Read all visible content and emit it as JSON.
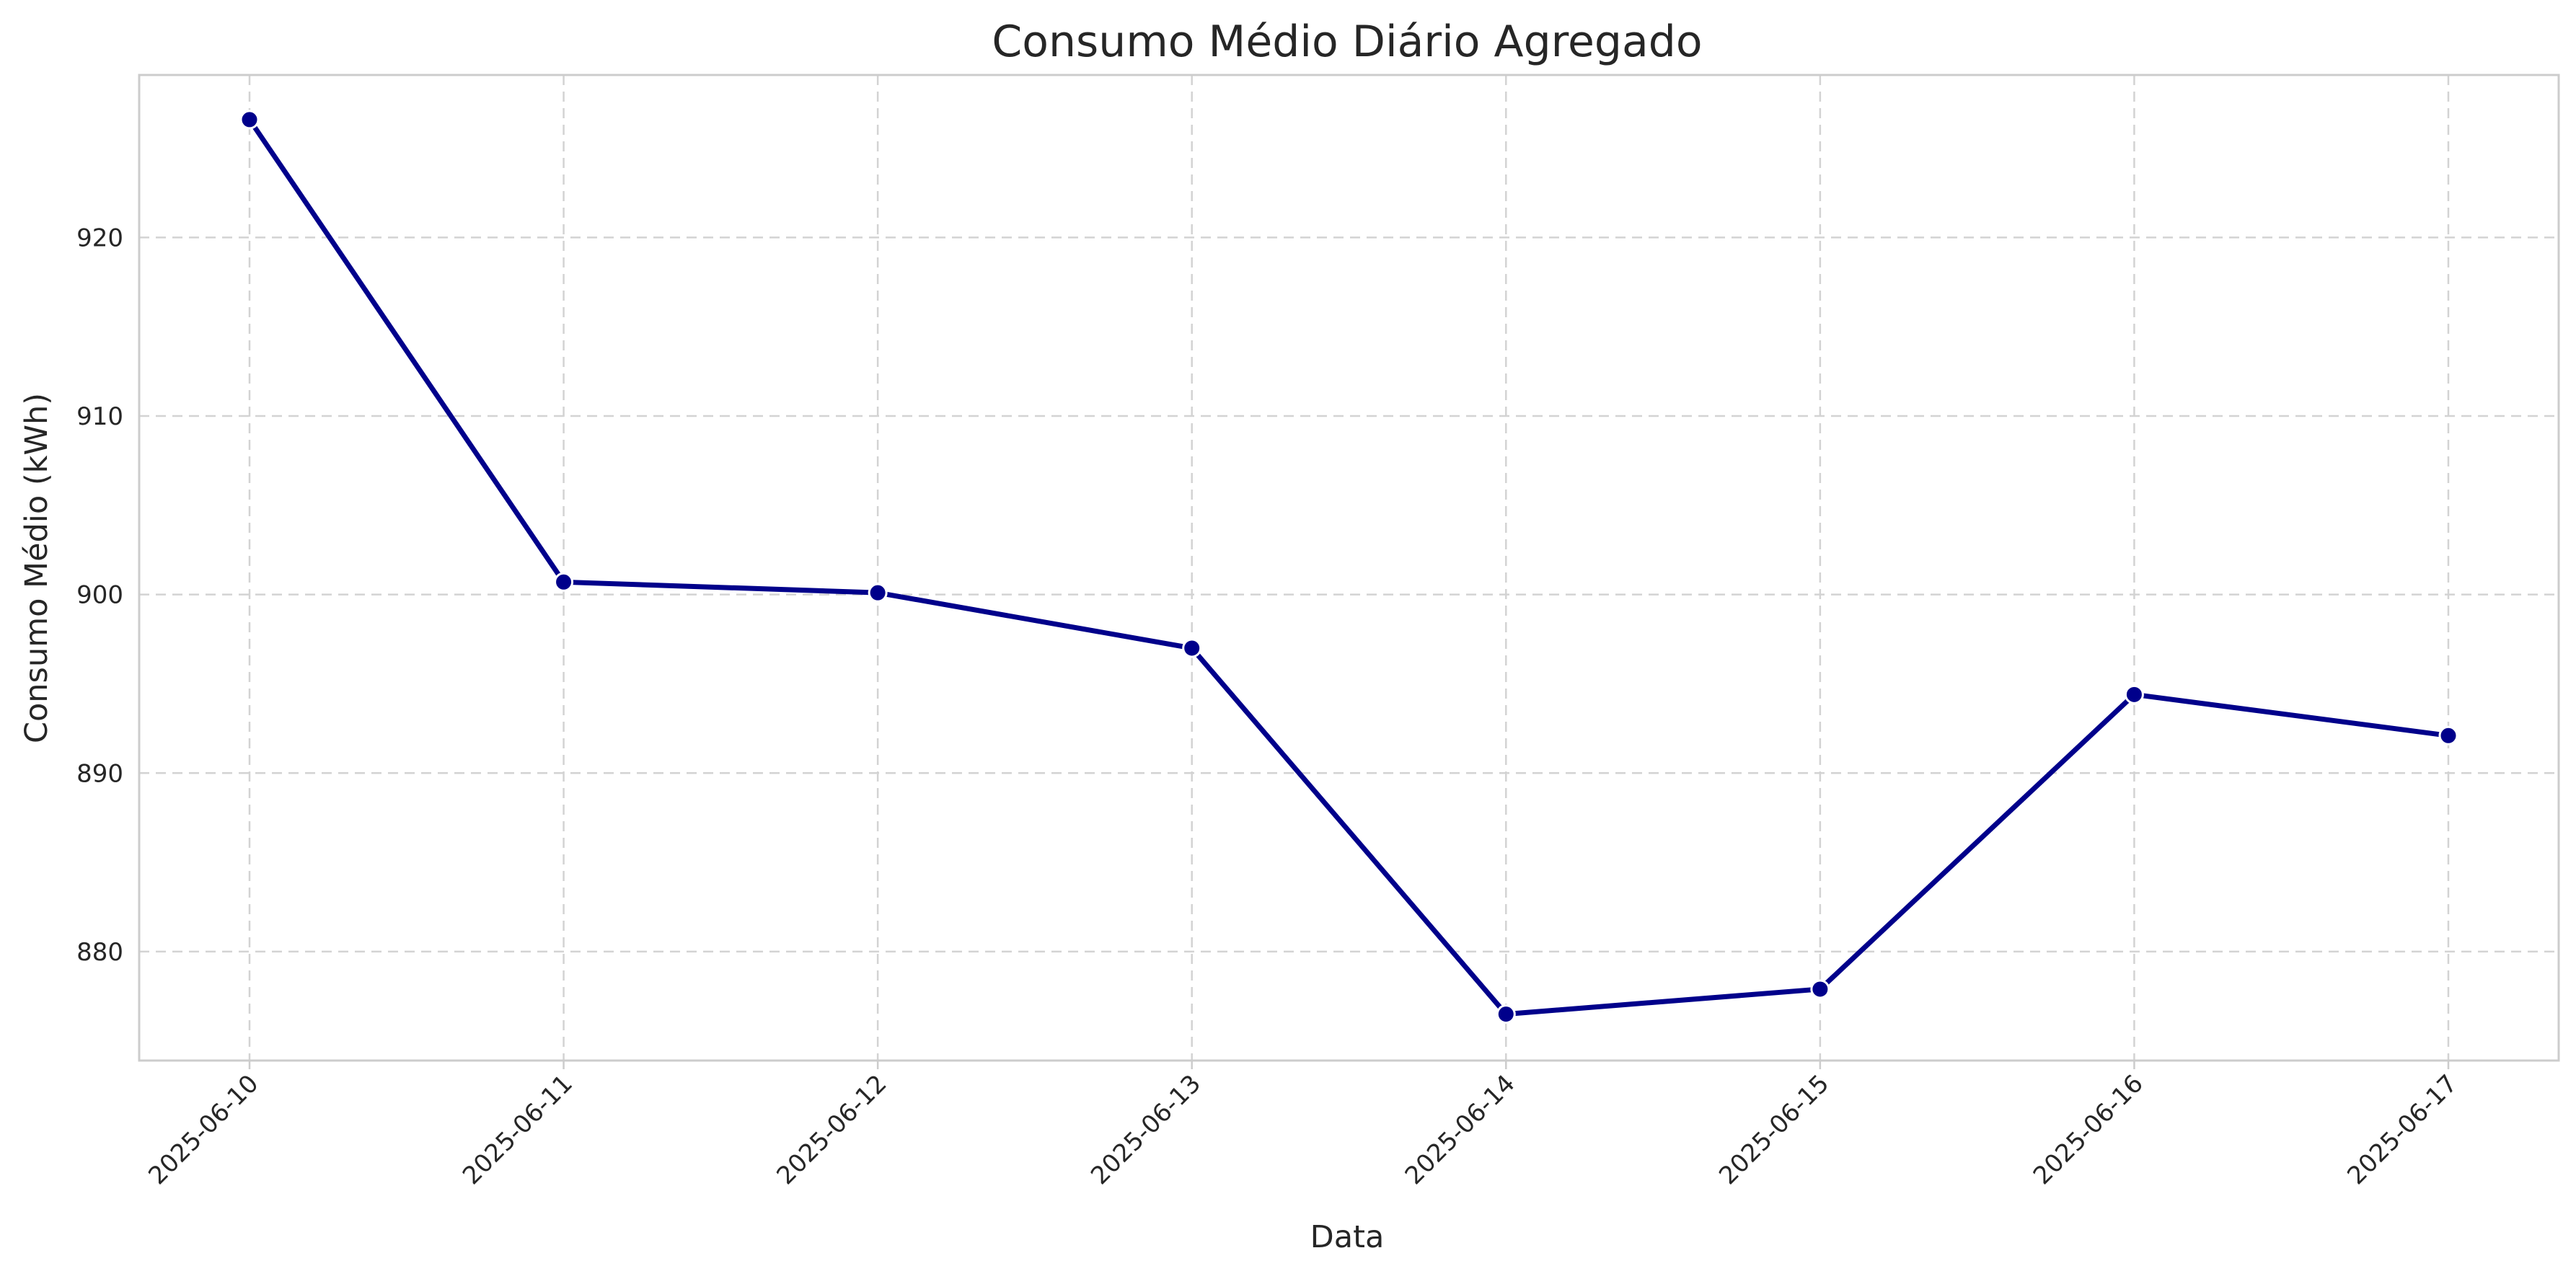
{
  "chart_data": {
    "type": "line",
    "title": "Consumo Médio Diário Agregado",
    "xlabel": "Data",
    "ylabel": "Consumo Médio  (kWh)",
    "x": [
      "2025-06-10",
      "2025-06-11",
      "2025-06-12",
      "2025-06-13",
      "2025-06-14",
      "2025-06-15",
      "2025-06-16",
      "2025-06-17"
    ],
    "series": [
      {
        "values": [
          926.6,
          900.7,
          900.1,
          897.0,
          876.5,
          877.9,
          894.4,
          892.1
        ],
        "color": "#00008b",
        "marker": "circle"
      }
    ],
    "y_ticks": [
      880,
      890,
      900,
      910,
      920
    ],
    "ylim": [
      873.9,
      929.1
    ],
    "grid": true,
    "x_tick_rotation": -45
  }
}
